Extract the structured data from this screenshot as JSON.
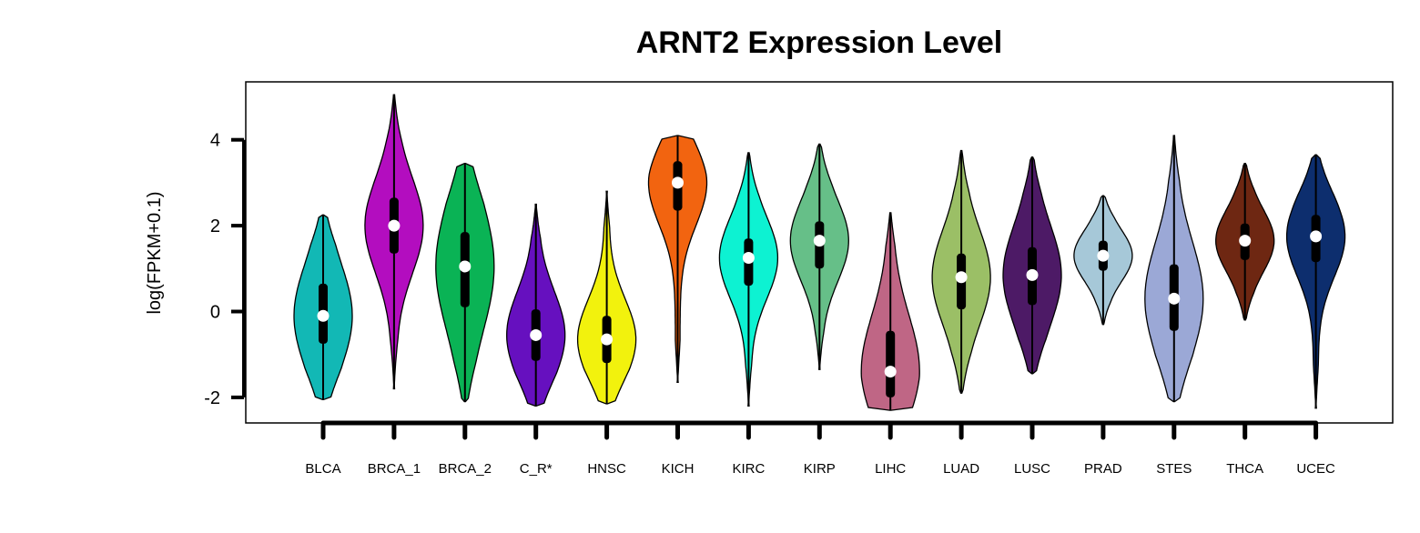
{
  "chart_data": {
    "type": "violin",
    "title": "ARNT2 Expression Level",
    "xlabel": "",
    "ylabel": "log(FPKM+0.1)",
    "ylim": [
      -2.5,
      5.2
    ],
    "yticks": [
      -2,
      0,
      2,
      4
    ],
    "legend": "none",
    "grid": false,
    "categories": [
      "BLCA",
      "BRCA_1",
      "BRCA_2",
      "C_R*",
      "HNSC",
      "KICH",
      "KIRC",
      "KIRP",
      "LIHC",
      "LUAD",
      "LUSC",
      "PRAD",
      "STES",
      "THCA",
      "UCEC"
    ],
    "colors": [
      "#12B8B5",
      "#B30DBF",
      "#0AB355",
      "#6610BF",
      "#F2F20D",
      "#F26410",
      "#0DF2D2",
      "#66BF88",
      "#BF6685",
      "#9BBF66",
      "#4D1A66",
      "#A6C8D8",
      "#9BA8D6",
      "#6E2712",
      "#0D2E6E"
    ],
    "series": [
      {
        "category": "BLCA",
        "min": -2.05,
        "max": 2.25,
        "q1": -0.75,
        "median": -0.1,
        "q3": 0.65,
        "wlo": -2.05,
        "whi": 2.25
      },
      {
        "category": "BRCA_1",
        "min": -1.8,
        "max": 5.05,
        "q1": 1.35,
        "median": 2.0,
        "q3": 2.65,
        "wlo": -1.8,
        "whi": 5.05
      },
      {
        "category": "BRCA_2",
        "min": -2.1,
        "max": 3.45,
        "q1": 0.1,
        "median": 1.05,
        "q3": 1.85,
        "wlo": -2.1,
        "whi": 3.45
      },
      {
        "category": "C_R*",
        "min": -2.2,
        "max": 2.5,
        "q1": -1.15,
        "median": -0.55,
        "q3": 0.05,
        "wlo": -2.2,
        "whi": 2.5
      },
      {
        "category": "HNSC",
        "min": -2.15,
        "max": 2.8,
        "q1": -1.2,
        "median": -0.65,
        "q3": -0.1,
        "wlo": -2.15,
        "whi": 2.8
      },
      {
        "category": "KICH",
        "min": -1.65,
        "max": 4.1,
        "q1": 2.35,
        "median": 3.0,
        "q3": 3.5,
        "wlo": -1.65,
        "whi": 4.1
      },
      {
        "category": "KIRC",
        "min": -2.2,
        "max": 3.7,
        "q1": 0.6,
        "median": 1.25,
        "q3": 1.7,
        "wlo": -2.2,
        "whi": 3.7
      },
      {
        "category": "KIRP",
        "min": -1.35,
        "max": 3.9,
        "q1": 1.0,
        "median": 1.65,
        "q3": 2.1,
        "wlo": -1.35,
        "whi": 3.9
      },
      {
        "category": "LIHC",
        "min": -2.3,
        "max": 2.3,
        "q1": -2.0,
        "median": -1.4,
        "q3": -0.45,
        "wlo": -2.3,
        "whi": 2.3
      },
      {
        "category": "LUAD",
        "min": -1.9,
        "max": 3.75,
        "q1": 0.05,
        "median": 0.8,
        "q3": 1.35,
        "wlo": -1.9,
        "whi": 3.75
      },
      {
        "category": "LUSC",
        "min": -1.45,
        "max": 3.6,
        "q1": 0.15,
        "median": 0.85,
        "q3": 1.5,
        "wlo": -1.45,
        "whi": 3.6
      },
      {
        "category": "PRAD",
        "min": -0.3,
        "max": 2.7,
        "q1": 0.95,
        "median": 1.3,
        "q3": 1.65,
        "wlo": -0.3,
        "whi": 2.7
      },
      {
        "category": "STES",
        "min": -2.1,
        "max": 4.1,
        "q1": -0.45,
        "median": 0.3,
        "q3": 1.1,
        "wlo": -2.1,
        "whi": 4.1
      },
      {
        "category": "THCA",
        "min": -0.2,
        "max": 3.45,
        "q1": 1.2,
        "median": 1.65,
        "q3": 2.05,
        "wlo": -0.2,
        "whi": 3.45
      },
      {
        "category": "UCEC",
        "min": -2.25,
        "max": 3.65,
        "q1": 1.15,
        "median": 1.75,
        "q3": 2.25,
        "wlo": -2.25,
        "whi": 3.65
      }
    ]
  }
}
